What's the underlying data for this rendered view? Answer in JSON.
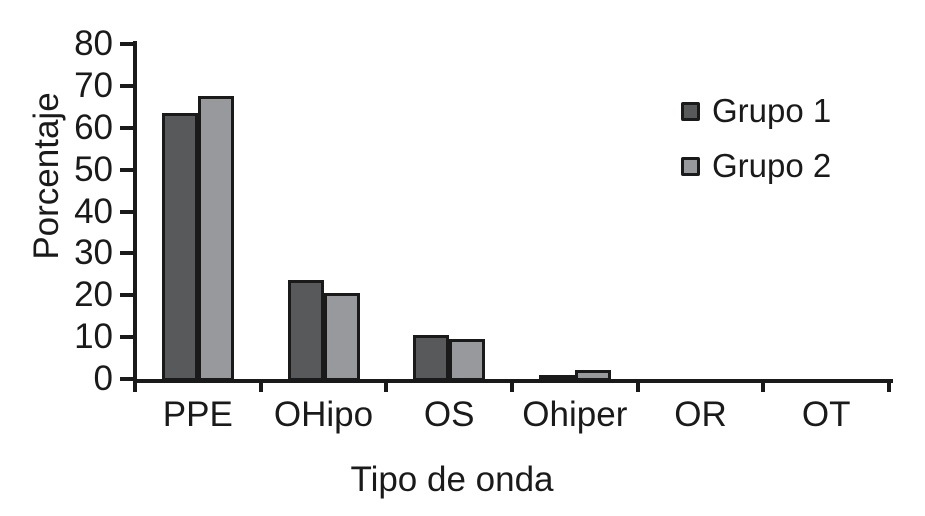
{
  "figure": {
    "background_color": "#ffffff",
    "axis_color": "#1a1a1a",
    "text_color": "#1a1a1a"
  },
  "chart_data": {
    "type": "bar",
    "title": "",
    "xlabel": "Tipo de onda",
    "ylabel": "Porcentaje",
    "categories": [
      "PPE",
      "OHipo",
      "OS",
      "Ohiper",
      "OR",
      "OT"
    ],
    "series": [
      {
        "name": "Grupo 1",
        "color": "#58595b",
        "values": [
          64,
          24,
          11,
          1.5,
          0,
          0
        ]
      },
      {
        "name": "Grupo 2",
        "color": "#98999c",
        "values": [
          68,
          21,
          10,
          2.7,
          0,
          0
        ]
      }
    ],
    "ylim": [
      0,
      80
    ],
    "yticks": [
      0,
      10,
      20,
      30,
      40,
      50,
      60,
      70,
      80
    ],
    "grid": false,
    "legend_position": "upper right",
    "bar_outline_color": "#1a1a1a"
  }
}
